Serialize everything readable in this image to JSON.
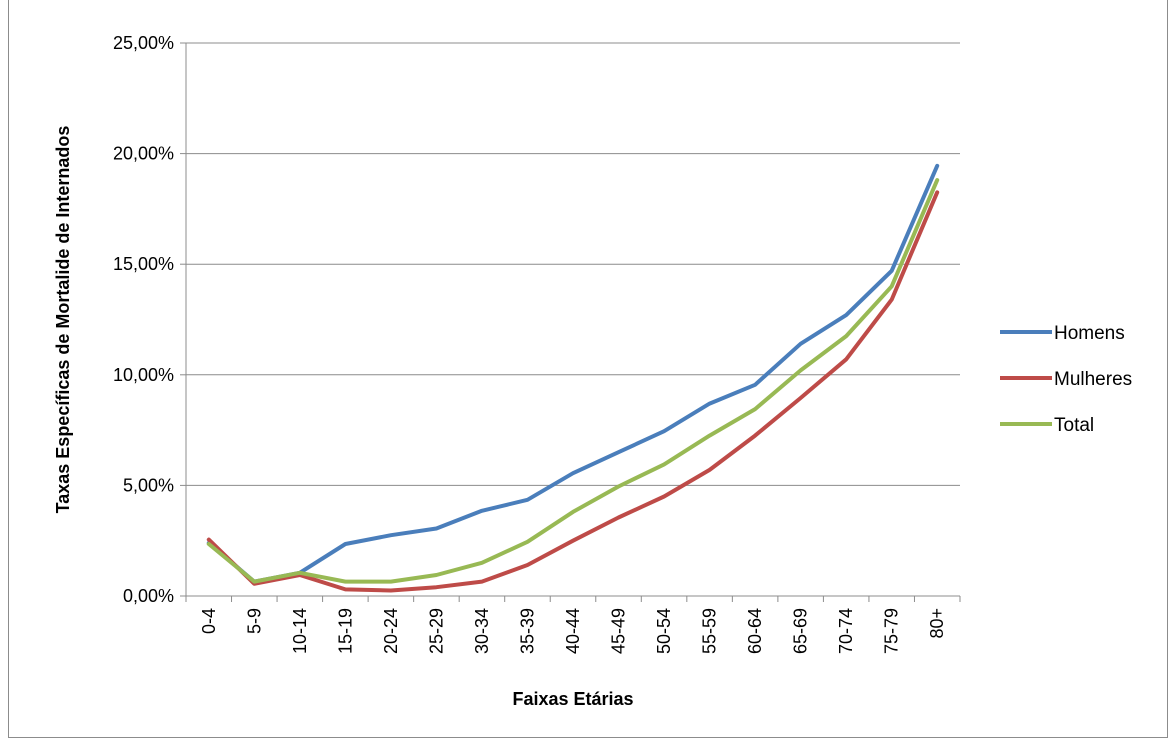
{
  "chart_data": {
    "type": "line",
    "title": "",
    "xlabel": "Faixas Etárias",
    "ylabel": "Taxas Específicas de Mortalide de Internados",
    "categories": [
      "0-4",
      "5-9",
      "10-14",
      "15-19",
      "20-24",
      "25-29",
      "30-34",
      "35-39",
      "40-44",
      "45-49",
      "50-54",
      "55-59",
      "60-64",
      "65-69",
      "70-74",
      "75-79",
      "80+"
    ],
    "ylim": [
      0,
      25
    ],
    "yticks": [
      0,
      5,
      10,
      15,
      20,
      25
    ],
    "ytick_labels": [
      "0,00%",
      "5,00%",
      "10,00%",
      "15,00%",
      "20,00%",
      "25,00%"
    ],
    "grid": true,
    "legend_position": "right",
    "series": [
      {
        "name": "Homens",
        "color": "#4a7ebb",
        "values": [
          2.4,
          0.65,
          1.05,
          2.35,
          2.75,
          3.05,
          3.85,
          4.35,
          5.55,
          6.5,
          7.45,
          8.7,
          9.55,
          11.4,
          12.7,
          14.7,
          19.45
        ]
      },
      {
        "name": "Mulheres",
        "color": "#be4b48",
        "values": [
          2.55,
          0.55,
          0.95,
          0.3,
          0.25,
          0.4,
          0.65,
          1.4,
          2.5,
          3.55,
          4.5,
          5.7,
          7.25,
          8.95,
          10.7,
          13.4,
          18.25
        ]
      },
      {
        "name": "Total",
        "color": "#98b954",
        "values": [
          2.35,
          0.65,
          1.05,
          0.65,
          0.65,
          0.95,
          1.5,
          2.45,
          3.8,
          4.95,
          5.95,
          7.25,
          8.45,
          10.2,
          11.75,
          14.0,
          18.8
        ]
      }
    ]
  }
}
